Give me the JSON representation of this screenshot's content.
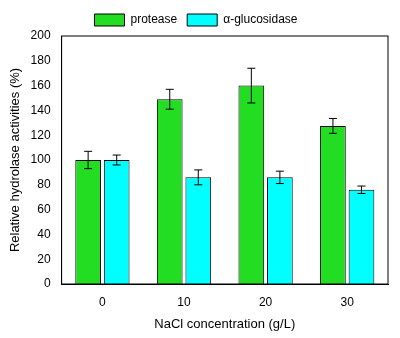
{
  "chart_data": {
    "type": "bar",
    "x_label": "NaCl concentration (g/L)",
    "y_label": "Relative hydrolase activities (%)",
    "categories": [
      "0",
      "10",
      "20",
      "30"
    ],
    "series": [
      {
        "name": "protease",
        "color": "#22dd22",
        "values": [
          100,
          149,
          160,
          127.5
        ],
        "errors": [
          7,
          8,
          14,
          6
        ]
      },
      {
        "name": "α-glucosidase",
        "color": "#00ffff",
        "values": [
          100,
          86,
          86,
          76
        ],
        "errors": [
          4,
          6,
          5,
          3
        ]
      }
    ],
    "ylim": [
      0,
      200
    ],
    "yticks": [
      0,
      20,
      40,
      60,
      80,
      100,
      120,
      140,
      160,
      180,
      200
    ],
    "grid": false,
    "legend": "top"
  }
}
